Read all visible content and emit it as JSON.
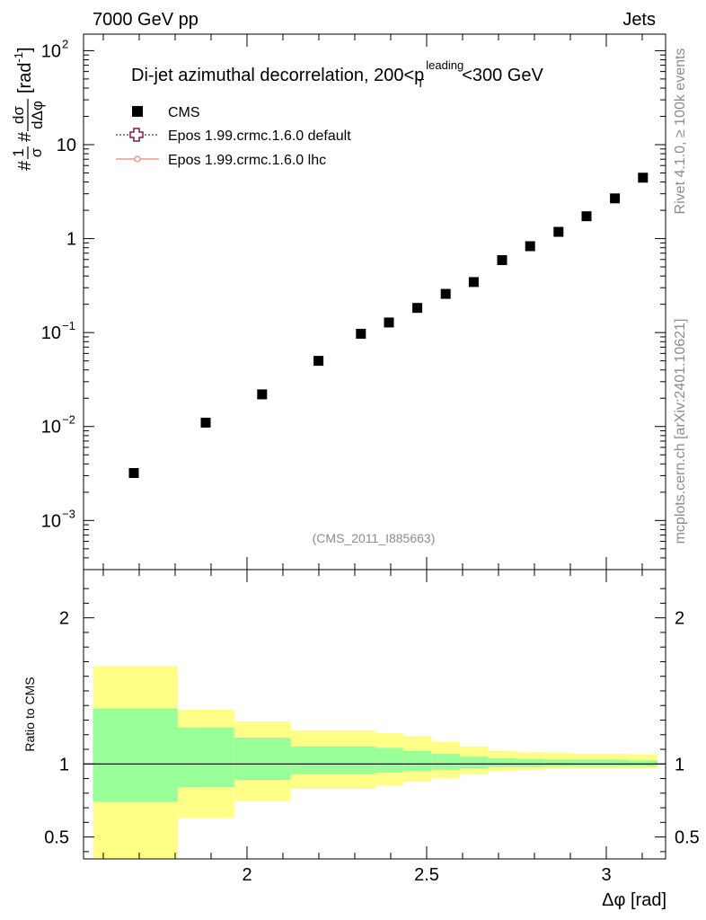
{
  "header": {
    "left": "7000 GeV pp",
    "right": "Jets"
  },
  "side_labels": {
    "top": "Rivet 4.1.0, ≥ 100k events",
    "bottom": "mcplots.cern.ch [arXiv:2401.10621]"
  },
  "analysis_tag": "(CMS_2011_I885663)",
  "chart_data": [
    {
      "type": "scatter",
      "title_main": "Di-jet azimuthal decorrelation, 200<p",
      "title_sup": "leading",
      "title_sub": "T",
      "title_end": "<300 GeV",
      "ylabel": "#1/σ dσ/dΔφ [rad⁻¹]",
      "ylabel_parts": {
        "hash": "#",
        "one": "1",
        "sigma": "σ",
        "dsigma": "dσ",
        "ddphi": "dΔφ",
        "unit": "[rad",
        "unit_exp": "-1",
        "unit_close": "]"
      },
      "yscale": "log",
      "ylim": [
        0.0003,
        150
      ],
      "xlim": [
        1.545,
        3.165
      ],
      "y_ticks": [
        {
          "value": 0.001,
          "base": "10",
          "exp": "−3"
        },
        {
          "value": 0.01,
          "base": "10",
          "exp": "−2"
        },
        {
          "value": 0.1,
          "base": "10",
          "exp": "−1"
        },
        {
          "value": 1,
          "label": "1"
        },
        {
          "value": 10,
          "label": "10"
        },
        {
          "value": 100,
          "base": "10",
          "exp": "2"
        }
      ],
      "legend": [
        {
          "name": "CMS",
          "marker": "square",
          "color": "#000000"
        },
        {
          "name": "Epos 1.99.crmc.1.6.0 default",
          "marker": "open-cross",
          "color": "#7a1f3d"
        },
        {
          "name": "Epos 1.99.crmc.1.6.0 lhc",
          "marker": "small-circle",
          "color": "#f08080"
        }
      ],
      "legend_position": "top-left",
      "series": [
        {
          "name": "CMS",
          "x": [
            1.685,
            1.885,
            2.042,
            2.199,
            2.317,
            2.395,
            2.474,
            2.553,
            2.631,
            2.71,
            2.788,
            2.867,
            2.945,
            3.024,
            3.102
          ],
          "values": [
            0.0032,
            0.011,
            0.022,
            0.05,
            0.097,
            0.128,
            0.183,
            0.258,
            0.345,
            0.59,
            0.83,
            1.18,
            1.73,
            2.68,
            4.45
          ]
        }
      ]
    },
    {
      "type": "area",
      "ylabel": "Ratio to CMS",
      "xlabel": "Δφ [rad]",
      "xlim": [
        1.545,
        3.165
      ],
      "ylim": [
        0.35,
        2.33
      ],
      "x_ticks": [
        2,
        2.5,
        3
      ],
      "x_tick_labels": [
        "2",
        "2.5",
        "3"
      ],
      "y_ticks": [
        0.5,
        1,
        2
      ],
      "y_tick_labels": [
        "0.5",
        "1",
        "2"
      ],
      "reference_line": 1,
      "bins": [
        {
          "x0": 1.571,
          "x1": 1.807,
          "outer": [
            0.3,
            1.67
          ],
          "inner": [
            0.74,
            1.38
          ]
        },
        {
          "x0": 1.807,
          "x1": 1.964,
          "outer": [
            0.63,
            1.37
          ],
          "inner": [
            0.84,
            1.25
          ]
        },
        {
          "x0": 1.964,
          "x1": 2.121,
          "outer": [
            0.75,
            1.29
          ],
          "inner": [
            0.89,
            1.18
          ]
        },
        {
          "x0": 2.121,
          "x1": 2.356,
          "outer": [
            0.83,
            1.23
          ],
          "inner": [
            0.93,
            1.12
          ]
        },
        {
          "x0": 2.356,
          "x1": 2.434,
          "outer": [
            0.85,
            1.21
          ],
          "inner": [
            0.94,
            1.11
          ]
        },
        {
          "x0": 2.434,
          "x1": 2.513,
          "outer": [
            0.88,
            1.19
          ],
          "inner": [
            0.95,
            1.09
          ]
        },
        {
          "x0": 2.513,
          "x1": 2.592,
          "outer": [
            0.9,
            1.15
          ],
          "inner": [
            0.96,
            1.07
          ]
        },
        {
          "x0": 2.592,
          "x1": 2.67,
          "outer": [
            0.93,
            1.12
          ],
          "inner": [
            0.97,
            1.05
          ]
        },
        {
          "x0": 2.67,
          "x1": 2.749,
          "outer": [
            0.95,
            1.09
          ],
          "inner": [
            0.98,
            1.04
          ]
        },
        {
          "x0": 2.749,
          "x1": 2.827,
          "outer": [
            0.96,
            1.08
          ],
          "inner": [
            0.98,
            1.035
          ]
        },
        {
          "x0": 2.827,
          "x1": 2.906,
          "outer": [
            0.965,
            1.075
          ],
          "inner": [
            0.985,
            1.03
          ]
        },
        {
          "x0": 2.906,
          "x1": 2.985,
          "outer": [
            0.97,
            1.07
          ],
          "inner": [
            0.985,
            1.03
          ]
        },
        {
          "x0": 2.985,
          "x1": 3.063,
          "outer": [
            0.97,
            1.07
          ],
          "inner": [
            0.985,
            1.03
          ]
        },
        {
          "x0": 3.063,
          "x1": 3.142,
          "outer": [
            0.97,
            1.065
          ],
          "inner": [
            0.985,
            1.025
          ]
        }
      ],
      "band_colors": {
        "outer": "#ffff88",
        "inner": "#99ff99"
      }
    }
  ]
}
